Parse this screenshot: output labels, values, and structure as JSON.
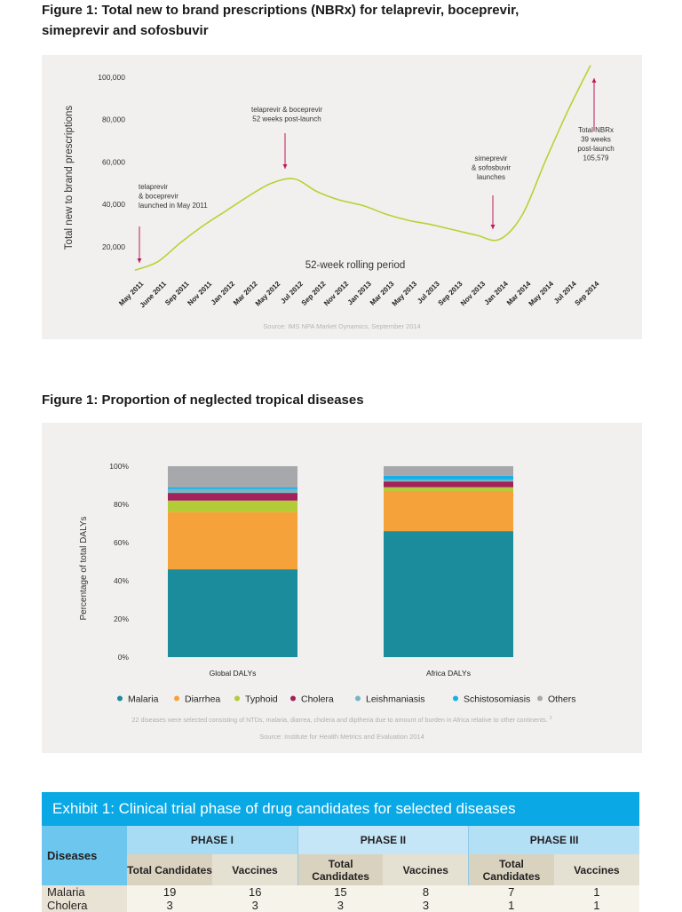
{
  "figure1": {
    "title": "Figure 1: Total new to brand prescriptions (NBRx) for telaprevir, boceprevir, simeprevir and sofosbuvir",
    "chart_data": {
      "type": "line",
      "ylabel": "Total new to brand prescriptions",
      "xlabel": "52-week rolling period",
      "yticks": [
        "20,000",
        "40,000",
        "60,000",
        "80,000",
        "100,000"
      ],
      "ytick_values": [
        20000,
        40000,
        60000,
        80000,
        100000
      ],
      "categories": [
        "May 2011",
        "June 2011",
        "Sep 2011",
        "Nov 2011",
        "Jan 2012",
        "Mar 2012",
        "May 2012",
        "Jul 2012",
        "Sep 2012",
        "Nov 2012",
        "Jan 2013",
        "Mar 2013",
        "May 2013",
        "Jul 2013",
        "Sep 2013",
        "Nov 2013",
        "Jan 2014",
        "Mar 2014",
        "May 2014",
        "Jul 2014",
        "Sep 2014"
      ],
      "values": [
        9000,
        13000,
        22000,
        30000,
        37000,
        44000,
        50000,
        52000,
        46000,
        42000,
        39500,
        35500,
        32500,
        30500,
        28000,
        25500,
        23500,
        35000,
        60000,
        84000,
        105579
      ],
      "line_color": "#b5d334",
      "annotation_color": "#c0185a",
      "grid": false,
      "annotations": [
        {
          "lines": [
            "telaprevir",
            "& boceprevir",
            "launched in May 2011"
          ],
          "at": "May 2011"
        },
        {
          "lines": [
            "telaprevir & boceprevir",
            "52 weeks post-launch"
          ],
          "at": "Jul 2012"
        },
        {
          "lines": [
            "simeprevir",
            "& sofosbuvir",
            "launches"
          ],
          "at": "Jan 2014"
        },
        {
          "lines": [
            "Total NBRx",
            "39 weeks",
            "post-launch",
            "105,579"
          ],
          "at": "Sep 2014"
        }
      ],
      "source": "Source: IMS NPA Market Dynamics, September 2014"
    }
  },
  "figure2": {
    "title": "Figure 1: Proportion of neglected tropical diseases",
    "chart_data": {
      "type": "bar",
      "stacked": true,
      "ylabel": "Percentage of total DALYs",
      "yticks": [
        "0%",
        "20%",
        "40%",
        "60%",
        "80%",
        "100%"
      ],
      "ylim": [
        0,
        100
      ],
      "categories": [
        "Global DALYs",
        "Africa DALYs"
      ],
      "series": [
        {
          "name": "Malaria",
          "color": "#1b8c9b",
          "values": [
            46,
            66
          ]
        },
        {
          "name": "Diarrhea",
          "color": "#f6a23b",
          "values": [
            30,
            21
          ]
        },
        {
          "name": "Typhoid",
          "color": "#b3cb37",
          "values": [
            6,
            2
          ]
        },
        {
          "name": "Cholera",
          "color": "#a2215a",
          "values": [
            4,
            3
          ]
        },
        {
          "name": "Leishmaniasis",
          "color": "#79b5c1",
          "values": [
            2,
            1
          ]
        },
        {
          "name": "Schistosomiasis",
          "color": "#1aaee6",
          "values": [
            1,
            2
          ]
        },
        {
          "name": "Others",
          "color": "#a7a8ab",
          "values": [
            11,
            5
          ]
        }
      ],
      "legend_position": "bottom",
      "footnote": "22 diseases were selected consisting of NTDs, malaria, diarrea, cholera and diptheria due to amount of burden in Africa relative to other continents.",
      "footnote_ref": "3",
      "source": "Source: Institute for Health Metrics and Evaluation 2014"
    }
  },
  "exhibit": {
    "title": "Exhibit 1: Clinical trial phase of drug candidates for selected diseases",
    "header_color": "#0aa9e6",
    "diseases_label": "Diseases",
    "phases": [
      "PHASE I",
      "PHASE II",
      "PHASE III"
    ],
    "sub": {
      "total": "Total Candidates",
      "vaccines": "Vaccines"
    },
    "rows": [
      {
        "disease": "Malaria",
        "values": [
          "19",
          "16",
          "15",
          "8",
          "7",
          "1"
        ]
      },
      {
        "disease": "Cholera",
        "values": [
          "3",
          "3",
          "3",
          "3",
          "1",
          "1"
        ]
      }
    ]
  }
}
